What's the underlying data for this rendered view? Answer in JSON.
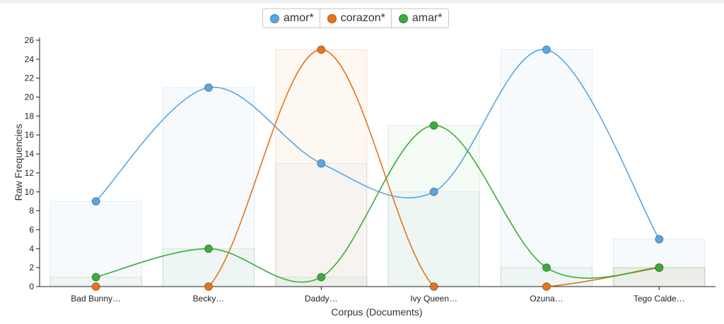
{
  "chart_data": {
    "type": "line",
    "xlabel": "Corpus (Documents)",
    "ylabel": "Raw Frequencies",
    "ylim": [
      0,
      26
    ],
    "yticks": [
      0,
      2,
      4,
      6,
      8,
      10,
      12,
      14,
      16,
      18,
      20,
      22,
      24,
      26
    ],
    "categories": [
      "Bad Bunny…",
      "Becky…",
      "Daddy…",
      "Ivy Queen…",
      "Ozuna…",
      "Tego Calde…"
    ],
    "series": [
      {
        "name": "amor*",
        "color": "#5ba6e0",
        "values": [
          9,
          21,
          13,
          10,
          25,
          5
        ]
      },
      {
        "name": "corazon*",
        "color": "#e8741a",
        "values": [
          0,
          0,
          25,
          0,
          0,
          2
        ]
      },
      {
        "name": "amar*",
        "color": "#3cac3c",
        "values": [
          1,
          4,
          1,
          17,
          2,
          2
        ]
      }
    ],
    "background_bars": true,
    "grid": false,
    "legend_position": "top"
  }
}
